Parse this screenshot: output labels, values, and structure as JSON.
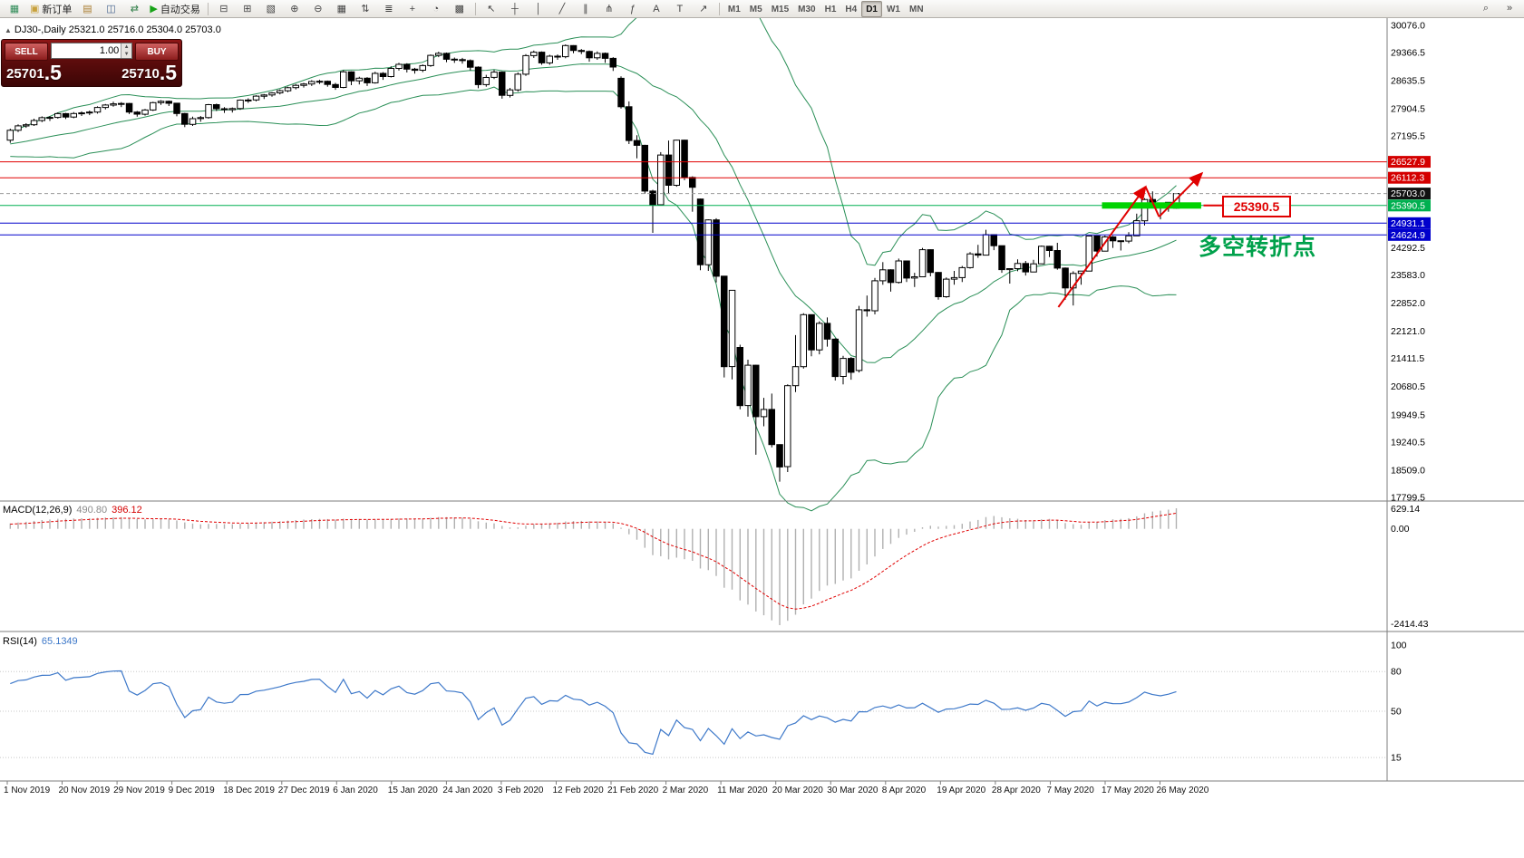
{
  "toolbar": {
    "buttons_left": [
      {
        "name": "new-chart-button",
        "icon": "new-chart-icon",
        "glyph": "▦",
        "glyph_color": "#2e8b57"
      },
      {
        "name": "new-order-button",
        "icon": "new-order-icon",
        "glyph": "▣",
        "glyph_color": "#c8a13c",
        "label": "新订单"
      },
      {
        "name": "market-watch-button",
        "icon": "market-watch-icon",
        "glyph": "▤",
        "glyph_color": "#a97c2f"
      },
      {
        "name": "data-window-button",
        "icon": "data-window-icon",
        "glyph": "◫",
        "glyph_color": "#46648f"
      },
      {
        "name": "navigator-button",
        "icon": "navigator-icon",
        "glyph": "⇄",
        "glyph_color": "#2e7d46"
      },
      {
        "name": "autotrading-button",
        "icon": "play-icon",
        "glyph": "▶",
        "glyph_color": "#17a317",
        "label": "自动交易"
      }
    ],
    "buttons_charts": [
      {
        "name": "tile-horizontal-button",
        "icon": "tile-horizontal-icon",
        "glyph": "⊟"
      },
      {
        "name": "tile-vertical-button",
        "icon": "tile-vertical-icon",
        "glyph": "⊞"
      },
      {
        "name": "cascade-button",
        "icon": "cascade-icon",
        "glyph": "▧"
      },
      {
        "name": "zoom-in-button",
        "icon": "zoom-in-icon",
        "glyph": "⊕"
      },
      {
        "name": "zoom-out-button",
        "icon": "zoom-out-icon",
        "glyph": "⊖"
      },
      {
        "name": "tile-grid-button",
        "icon": "tile-grid-icon",
        "glyph": "▦"
      },
      {
        "name": "sort-ascending-button",
        "icon": "sort-ascending-icon",
        "glyph": "⇅"
      },
      {
        "name": "bar-chart-button",
        "icon": "bar-chart-icon",
        "glyph": "≣"
      },
      {
        "name": "add-chart-button",
        "icon": "add-chart-icon",
        "glyph": "+"
      },
      {
        "name": "clock-button",
        "icon": "clock-icon",
        "glyph": "◔"
      },
      {
        "name": "grid-button",
        "icon": "grid-icon",
        "glyph": "▩"
      }
    ],
    "buttons_tools": [
      {
        "name": "cursor-button",
        "icon": "cursor-icon",
        "glyph": "↖"
      },
      {
        "name": "crosshair-button",
        "icon": "crosshair-icon",
        "glyph": "┼"
      },
      {
        "name": "vertical-line-button",
        "icon": "vertical-line-icon",
        "glyph": "│"
      },
      {
        "name": "trendline-button",
        "icon": "trendline-icon",
        "glyph": "╱"
      },
      {
        "name": "channel-button",
        "icon": "channel-icon",
        "glyph": "∥"
      },
      {
        "name": "pitchfork-button",
        "icon": "pitchfork-icon",
        "glyph": "⋔"
      },
      {
        "name": "fibonacci-button",
        "icon": "fibonacci-icon",
        "glyph": "ƒ"
      },
      {
        "name": "text-button",
        "icon": "text-icon",
        "glyph": "A"
      },
      {
        "name": "label-button",
        "icon": "label-icon",
        "glyph": "T"
      },
      {
        "name": "arrows-button",
        "icon": "arrows-icon",
        "glyph": "↗"
      }
    ],
    "timeframes": {
      "items": [
        "M1",
        "M5",
        "M15",
        "M30",
        "H1",
        "H4",
        "D1",
        "W1",
        "MN"
      ],
      "active": "D1"
    },
    "buttons_right": [
      {
        "name": "search-button",
        "icon": "search-icon",
        "glyph": "⌕"
      },
      {
        "name": "more-button",
        "icon": "chevron-icon",
        "glyph": "»"
      }
    ]
  },
  "chart_header": {
    "collapse_icon": "▲",
    "symbol_period": "DJ30-,Daily",
    "open": "25321.0",
    "high": "25716.0",
    "low": "25304.0",
    "close": "25703.0"
  },
  "trade_panel": {
    "sell_label": "SELL",
    "buy_label": "BUY",
    "volume": "1.00",
    "sell_price": "25701.5",
    "buy_price": "25710.5",
    "spin_up_icon": "▲",
    "spin_down_icon": "▼"
  },
  "chart_data": {
    "type": "candlestick",
    "symbol": "DJ30-",
    "period": "Daily",
    "price_range": {
      "top": 30076.0,
      "bottom": 17799.5
    },
    "price_axis_ticks": [
      30076.0,
      29366.5,
      28635.5,
      27904.5,
      27195.5,
      24292.5,
      23583.0,
      22852.0,
      22121.0,
      21411.5,
      20680.5,
      19949.5,
      19240.5,
      18509.0,
      17799.5
    ],
    "levels": [
      {
        "price": 26527.9,
        "line_color": "#e00000",
        "dash": "",
        "tag_bg": "#d40000",
        "tag_fg": "#ffffff"
      },
      {
        "price": 26112.3,
        "line_color": "#e00000",
        "dash": "",
        "tag_bg": "#d40000",
        "tag_fg": "#ffffff"
      },
      {
        "price": 25703.0,
        "line_color": "#9a9a9a",
        "dash": "4,3",
        "tag_bg": "#111111",
        "tag_fg": "#ffffff"
      },
      {
        "price": 25390.5,
        "line_color": "#00b050",
        "dash": "",
        "tag_bg": "#00b050",
        "tag_fg": "#ffffff"
      },
      {
        "price": 24931.1,
        "line_color": "#0000cc",
        "dash": "",
        "tag_bg": "#0000cc",
        "tag_fg": "#ffffff"
      },
      {
        "price": 24624.9,
        "line_color": "#0000cc",
        "dash": "",
        "tag_bg": "#0000cc",
        "tag_fg": "#ffffff"
      }
    ],
    "green_zone": {
      "price": 25390.5,
      "start_index": 138,
      "end_index": 150.5,
      "color": "#00d300"
    },
    "bollinger": {
      "period": 20,
      "deviation": 2,
      "color": "#2a8f57"
    },
    "macd": {
      "label": "MACD(12,26,9)",
      "value_main": "490.80",
      "value_signal": "396.12",
      "fast": 12,
      "slow": 26,
      "signal_period": 9,
      "axis_labels": [
        "629.14",
        "0.00",
        "-2414.43"
      ],
      "histogram_color": "#b0b0b0",
      "signal_color": "#e00000"
    },
    "rsi": {
      "label": "RSI(14)",
      "value": "65.1349",
      "period": 14,
      "axis_labels": [
        "100",
        "80",
        "50",
        "15"
      ],
      "level_lines": [
        80,
        50,
        15
      ],
      "line_color": "#3d78c9"
    },
    "x_axis_labels": [
      "1 Nov 2019",
      "20 Nov 2019",
      "29 Nov 2019",
      "9 Dec 2019",
      "18 Dec 2019",
      "27 Dec 2019",
      "6 Jan 2020",
      "15 Jan 2020",
      "24 Jan 2020",
      "3 Feb 2020",
      "12 Feb 2020",
      "21 Feb 2020",
      "2 Mar 2020",
      "11 Mar 2020",
      "20 Mar 2020",
      "30 Mar 2020",
      "8 Apr 2020",
      "19 Apr 2020",
      "28 Apr 2020",
      "7 May 2020",
      "17 May 2020",
      "26 May 2020"
    ],
    "annotations": {
      "arrow_color": "#e00000",
      "lines": [
        {
          "from_i": 132.5,
          "from_price": 22750,
          "to_i": 143.5,
          "to_price": 25880,
          "arrow": true
        },
        {
          "from_i": 143.5,
          "from_price": 25880,
          "to_i": 145.2,
          "to_price": 25100,
          "arrow": false
        },
        {
          "from_i": 145.2,
          "from_price": 25100,
          "to_i": 150.6,
          "to_price": 26230,
          "arrow": true
        },
        {
          "from_i": 150.8,
          "from_price": 25390.5,
          "to_i": 153.2,
          "to_price": 25390.5,
          "arrow": false
        }
      ],
      "pivot_label": {
        "text": "多空转折点",
        "color": "#00a14b"
      },
      "price_callout": {
        "text": "25390.5",
        "color": "#e00000"
      }
    },
    "indicator_warmup": [
      26573,
      26770,
      26788,
      26808,
      26820,
      26827,
      27025,
      27110,
      27186,
      26788,
      26807,
      27001,
      27025,
      27071,
      27186,
      27046,
      26958,
      27024,
      27091,
      27140
    ],
    "candles": [
      [
        27090,
        27390,
        27020,
        27347
      ],
      [
        27347,
        27500,
        27300,
        27462
      ],
      [
        27462,
        27530,
        27410,
        27492
      ],
      [
        27492,
        27650,
        27460,
        27602
      ],
      [
        27602,
        27710,
        27560,
        27674
      ],
      [
        27674,
        27720,
        27590,
        27681
      ],
      [
        27681,
        27810,
        27650,
        27781
      ],
      [
        27781,
        27800,
        27640,
        27691
      ],
      [
        27691,
        27820,
        27660,
        27783
      ],
      [
        27783,
        27840,
        27720,
        27800
      ],
      [
        27800,
        27860,
        27740,
        27820
      ],
      [
        27820,
        27970,
        27780,
        27940
      ],
      [
        27940,
        28030,
        27890,
        28004
      ],
      [
        28004,
        28090,
        27960,
        28036
      ],
      [
        28036,
        28080,
        27950,
        28045
      ],
      [
        28045,
        28060,
        27770,
        27821
      ],
      [
        27821,
        27850,
        27700,
        27766
      ],
      [
        27766,
        27900,
        27730,
        27876
      ],
      [
        27876,
        28090,
        27850,
        28066
      ],
      [
        28066,
        28130,
        28010,
        28102
      ],
      [
        28102,
        28120,
        27980,
        28051
      ],
      [
        28051,
        28060,
        27710,
        27783
      ],
      [
        27783,
        27800,
        27430,
        27502
      ],
      [
        27502,
        27700,
        27460,
        27650
      ],
      [
        27650,
        27720,
        27570,
        27677
      ],
      [
        27677,
        28030,
        27650,
        28015
      ],
      [
        28015,
        28040,
        27850,
        27909
      ],
      [
        27909,
        27950,
        27800,
        27882
      ],
      [
        27882,
        27940,
        27810,
        27912
      ],
      [
        27912,
        28150,
        27880,
        28132
      ],
      [
        28132,
        28180,
        28060,
        28135
      ],
      [
        28135,
        28260,
        28100,
        28235
      ],
      [
        28235,
        28290,
        28160,
        28267
      ],
      [
        28267,
        28340,
        28220,
        28319
      ],
      [
        28319,
        28410,
        28280,
        28376
      ],
      [
        28376,
        28480,
        28340,
        28455
      ],
      [
        28455,
        28550,
        28410,
        28515
      ],
      [
        28515,
        28580,
        28460,
        28551
      ],
      [
        28551,
        28650,
        28500,
        28615
      ],
      [
        28615,
        28660,
        28550,
        28621
      ],
      [
        28621,
        28640,
        28480,
        28538
      ],
      [
        28538,
        28580,
        28400,
        28462
      ],
      [
        28462,
        28910,
        28440,
        28868
      ],
      [
        28868,
        28880,
        28520,
        28634
      ],
      [
        28634,
        28740,
        28540,
        28703
      ],
      [
        28703,
        28730,
        28500,
        28583
      ],
      [
        28583,
        28870,
        28560,
        28827
      ],
      [
        28827,
        28860,
        28660,
        28745
      ],
      [
        28745,
        29010,
        28720,
        28956
      ],
      [
        28956,
        29100,
        28900,
        29063
      ],
      [
        29063,
        29090,
        28850,
        28939
      ],
      [
        28939,
        28970,
        28820,
        28909
      ],
      [
        28909,
        29060,
        28860,
        29030
      ],
      [
        29030,
        29320,
        29000,
        29297
      ],
      [
        29297,
        29390,
        29250,
        29348
      ],
      [
        29348,
        29370,
        29120,
        29196
      ],
      [
        29196,
        29240,
        29100,
        29186
      ],
      [
        29186,
        29230,
        29080,
        29160
      ],
      [
        29160,
        29190,
        28910,
        28989
      ],
      [
        28989,
        29010,
        28440,
        28535
      ],
      [
        28535,
        28790,
        28480,
        28722
      ],
      [
        28722,
        28920,
        28680,
        28859
      ],
      [
        28859,
        28880,
        28170,
        28256
      ],
      [
        28256,
        28450,
        28200,
        28399
      ],
      [
        28399,
        28850,
        28350,
        28807
      ],
      [
        28807,
        29330,
        28760,
        29290
      ],
      [
        29290,
        29420,
        29230,
        29379
      ],
      [
        29379,
        29400,
        29050,
        29102
      ],
      [
        29102,
        29310,
        29050,
        29276
      ],
      [
        29276,
        29320,
        29180,
        29260
      ],
      [
        29260,
        29580,
        29220,
        29551
      ],
      [
        29551,
        29560,
        29350,
        29423
      ],
      [
        29423,
        29460,
        29330,
        29398
      ],
      [
        29398,
        29420,
        29130,
        29232
      ],
      [
        29232,
        29400,
        29180,
        29348
      ],
      [
        29348,
        29370,
        29100,
        29219
      ],
      [
        29219,
        29250,
        28890,
        28992
      ],
      [
        28700,
        28750,
        27910,
        27960
      ],
      [
        27960,
        28100,
        26990,
        27081
      ],
      [
        27081,
        27220,
        26620,
        26957
      ],
      [
        26957,
        26970,
        25700,
        25766
      ],
      [
        25766,
        25800,
        24680,
        25409
      ],
      [
        25409,
        26780,
        25390,
        26703
      ],
      [
        26703,
        27080,
        25710,
        25917
      ],
      [
        25917,
        27100,
        25880,
        27090
      ],
      [
        27090,
        27100,
        26050,
        26121
      ],
      [
        26121,
        26150,
        25230,
        25864
      ],
      [
        25560,
        25570,
        23710,
        23851
      ],
      [
        23851,
        25030,
        23690,
        25018
      ],
      [
        25018,
        25060,
        23390,
        23553
      ],
      [
        23553,
        23560,
        20920,
        21200
      ],
      [
        21200,
        23190,
        20870,
        23185
      ],
      [
        21700,
        21770,
        20090,
        20188
      ],
      [
        20188,
        21380,
        19900,
        21237
      ],
      [
        21237,
        21250,
        18910,
        19898
      ],
      [
        19898,
        20390,
        19650,
        20087
      ],
      [
        20087,
        20500,
        19100,
        19173
      ],
      [
        19173,
        19180,
        18210,
        18591
      ],
      [
        18600,
        20740,
        18460,
        20704
      ],
      [
        20704,
        22020,
        20540,
        21200
      ],
      [
        21200,
        22590,
        21150,
        22552
      ],
      [
        22552,
        22560,
        21470,
        21636
      ],
      [
        21636,
        22380,
        21520,
        22327
      ],
      [
        22327,
        22480,
        21720,
        21917
      ],
      [
        21917,
        21940,
        20840,
        20943
      ],
      [
        20943,
        21480,
        20740,
        21413
      ],
      [
        21413,
        21450,
        20860,
        21052
      ],
      [
        21100,
        22780,
        21050,
        22679
      ],
      [
        22679,
        23050,
        22500,
        22653
      ],
      [
        22653,
        23510,
        22560,
        23433
      ],
      [
        23433,
        23920,
        23330,
        23719
      ],
      [
        23719,
        23730,
        23150,
        23390
      ],
      [
        23390,
        24010,
        23360,
        23949
      ],
      [
        23949,
        23960,
        23400,
        23504
      ],
      [
        23504,
        23640,
        23270,
        23537
      ],
      [
        23537,
        24290,
        23530,
        24242
      ],
      [
        24242,
        24250,
        23550,
        23650
      ],
      [
        23650,
        23660,
        22940,
        23018
      ],
      [
        23018,
        23520,
        22990,
        23475
      ],
      [
        23475,
        23690,
        23330,
        23515
      ],
      [
        23515,
        23820,
        23400,
        23775
      ],
      [
        23775,
        24180,
        23750,
        24133
      ],
      [
        24133,
        24370,
        24030,
        24101
      ],
      [
        24101,
        24760,
        24090,
        24633
      ],
      [
        24633,
        24640,
        24230,
        24345
      ],
      [
        24345,
        24350,
        23640,
        23723
      ],
      [
        23723,
        23760,
        23360,
        23749
      ],
      [
        23749,
        23990,
        23680,
        23883
      ],
      [
        23883,
        23950,
        23570,
        23664
      ],
      [
        23664,
        23980,
        23660,
        23875
      ],
      [
        23875,
        24350,
        23870,
        24331
      ],
      [
        24331,
        24340,
        24050,
        24221
      ],
      [
        24221,
        24420,
        23720,
        23764
      ],
      [
        23764,
        23780,
        22940,
        23247
      ],
      [
        23247,
        23680,
        22790,
        23625
      ],
      [
        23625,
        23690,
        23330,
        23685
      ],
      [
        23685,
        24600,
        23680,
        24597
      ],
      [
        24597,
        24600,
        24060,
        24206
      ],
      [
        24206,
        24610,
        24200,
        24575
      ],
      [
        24575,
        24600,
        24290,
        24474
      ],
      [
        24474,
        24480,
        24220,
        24465
      ],
      [
        24465,
        24700,
        24410,
        24602
      ],
      [
        24602,
        25180,
        24600,
        24995
      ],
      [
        24995,
        25580,
        24870,
        25548
      ],
      [
        25548,
        25760,
        25330,
        25400
      ],
      [
        25400,
        25420,
        25030,
        25330
      ],
      [
        25330,
        25480,
        25230,
        25475
      ],
      [
        25321,
        25716,
        25304,
        25703
      ]
    ]
  }
}
